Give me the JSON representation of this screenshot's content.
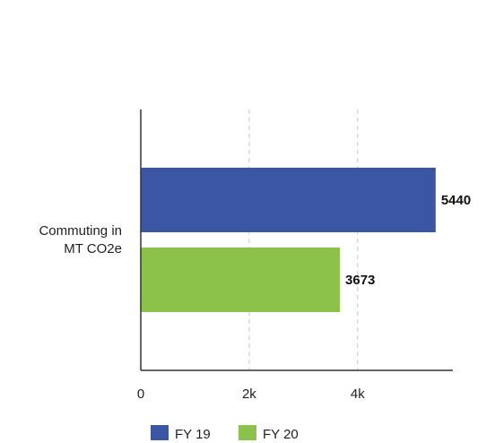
{
  "chart_data": {
    "type": "bar",
    "orientation": "horizontal",
    "categories": [
      "Commuting in MT CO2e"
    ],
    "category_lines": [
      "Commuting in",
      "MT CO2e"
    ],
    "series": [
      {
        "name": "FY 19",
        "values": [
          5440
        ],
        "value_labels": [
          "5440"
        ],
        "color": "#3a56a5"
      },
      {
        "name": "FY 20",
        "values": [
          3673
        ],
        "value_labels": [
          "3673"
        ],
        "color": "#8bc34a"
      }
    ],
    "x_ticks": [
      {
        "value": 0,
        "label": "0"
      },
      {
        "value": 2000,
        "label": "2k"
      },
      {
        "value": 4000,
        "label": "4k"
      }
    ],
    "xlim": [
      0,
      5700
    ],
    "grid": "vertical dashed",
    "legend_position": "bottom-center",
    "title": "",
    "xlabel": "",
    "ylabel": ""
  }
}
